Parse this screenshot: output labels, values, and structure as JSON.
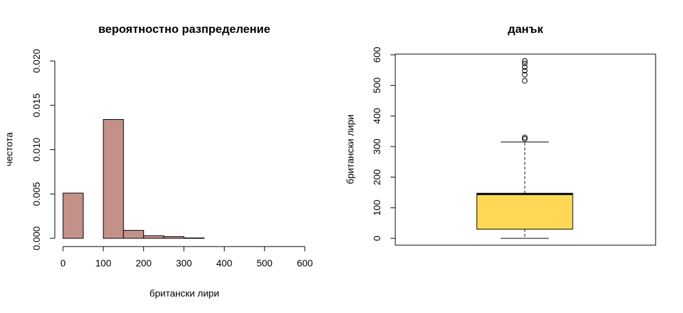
{
  "chart_data": [
    {
      "type": "bar",
      "title": "вероятностно разпределение",
      "xlabel": "британски лири",
      "ylabel": "честота",
      "xlim": [
        0,
        600
      ],
      "ylim": [
        0,
        0.02
      ],
      "x_ticks": [
        "0",
        "100",
        "200",
        "300",
        "400",
        "500",
        "600"
      ],
      "y_ticks": [
        "0.000",
        "0.005",
        "0.010",
        "0.015",
        "0.020"
      ],
      "bar_color": "#C4918A",
      "bins": [
        {
          "start": 0,
          "end": 50,
          "value": 0.0051
        },
        {
          "start": 50,
          "end": 100,
          "value": 0
        },
        {
          "start": 100,
          "end": 150,
          "value": 0.0134
        },
        {
          "start": 150,
          "end": 200,
          "value": 0.0009
        },
        {
          "start": 200,
          "end": 250,
          "value": 0.0003
        },
        {
          "start": 250,
          "end": 300,
          "value": 0.0002
        },
        {
          "start": 300,
          "end": 350,
          "value": 5e-05
        },
        {
          "start": 350,
          "end": 400,
          "value": 0
        },
        {
          "start": 400,
          "end": 450,
          "value": 0
        },
        {
          "start": 450,
          "end": 500,
          "value": 0
        },
        {
          "start": 500,
          "end": 550,
          "value": 0
        },
        {
          "start": 550,
          "end": 600,
          "value": 0
        }
      ]
    },
    {
      "type": "box",
      "title": "данък",
      "xlabel": "",
      "ylabel": "британски лири",
      "ylim": [
        0,
        600
      ],
      "y_ticks": [
        "0",
        "100",
        "200",
        "300",
        "400",
        "500",
        "600"
      ],
      "box_color": "#FFD955",
      "whisker_low": 0,
      "q1": 30,
      "median": 145,
      "q3": 147,
      "whisker_high": 315,
      "outliers": [
        325,
        330,
        515,
        535,
        548,
        560,
        572,
        580
      ]
    }
  ]
}
